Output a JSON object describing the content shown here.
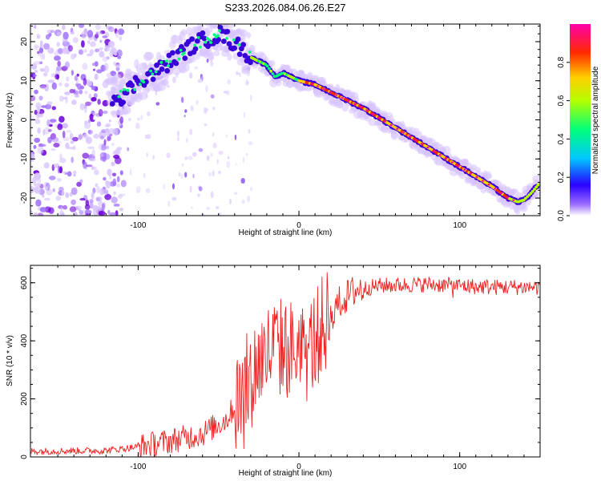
{
  "title": "S233.2026.084.06.26.E27",
  "chart_data": [
    {
      "type": "heatmap",
      "xlabel": "Height of straight line (km)",
      "ylabel": "Frequency (Hz)",
      "xlim": [
        -167,
        150
      ],
      "ylim": [
        -24.5,
        24.5
      ],
      "xticks": [
        -100,
        0,
        100
      ],
      "yticks": [
        -20,
        -10,
        0,
        10,
        20
      ],
      "colorbar": {
        "label": "Normalized spectral amplitude",
        "ticks": [
          0.0,
          0.2,
          0.4,
          0.6,
          0.8
        ],
        "range": [
          0,
          1
        ],
        "colormap": "rainbow"
      },
      "ridge": {
        "x": [
          -110,
          -100,
          -90,
          -80,
          -70,
          -62,
          -55,
          -48,
          -42,
          -35,
          -30,
          -20,
          -15,
          -10,
          0,
          10,
          20,
          40,
          60,
          80,
          100,
          120,
          130,
          136,
          140,
          145,
          149
        ],
        "y": [
          6,
          10,
          12,
          15,
          18,
          20,
          21,
          22,
          20,
          18,
          16,
          14,
          11,
          12,
          10,
          9,
          7,
          3,
          -2,
          -7,
          -12,
          -17,
          -20,
          -21,
          -20.5,
          -18.5,
          -16.5
        ]
      }
    },
    {
      "type": "line",
      "xlabel": "Height of straight line (km)",
      "ylabel": "SNR (10 * v/v)",
      "xlim": [
        -167,
        150
      ],
      "ylim": [
        0,
        660
      ],
      "xticks": [
        -100,
        0,
        100
      ],
      "yticks": [
        0,
        200,
        400,
        600
      ],
      "series_color": "#ee2222",
      "trend": {
        "x": [
          -167,
          -120,
          -100,
          -80,
          -60,
          -45,
          -35,
          -25,
          -15,
          -5,
          5,
          15,
          25,
          35,
          50,
          80,
          100,
          120,
          150
        ],
        "y": [
          20,
          22,
          35,
          55,
          80,
          130,
          220,
          330,
          380,
          370,
          360,
          450,
          530,
          575,
          590,
          595,
          590,
          585,
          585
        ]
      }
    }
  ]
}
